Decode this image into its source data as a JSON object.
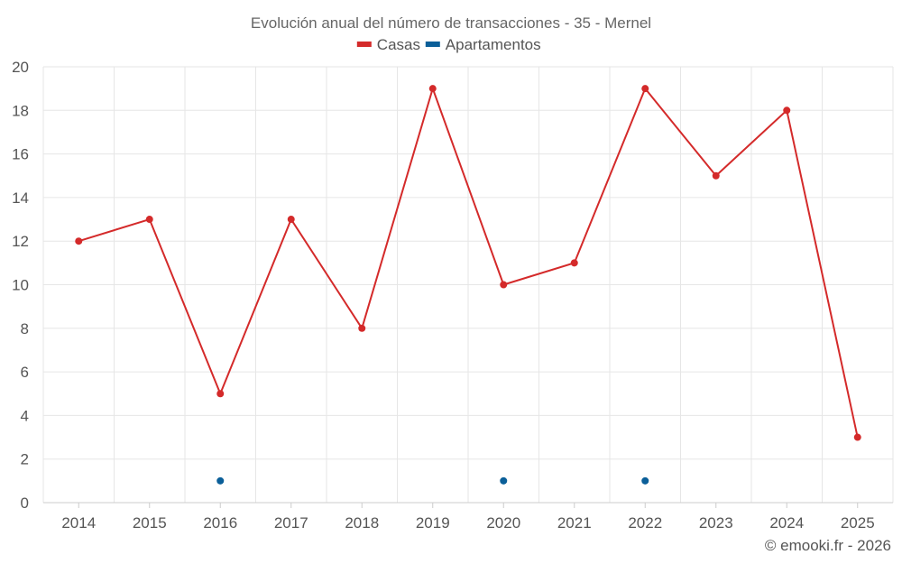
{
  "chart_data": {
    "type": "line",
    "title": "Evolución anual del número de transacciones - 35 - Mernel",
    "categories": [
      "2014",
      "2015",
      "2016",
      "2017",
      "2018",
      "2019",
      "2020",
      "2021",
      "2022",
      "2023",
      "2024",
      "2025"
    ],
    "series": [
      {
        "name": "Casas",
        "color": "#d42a2a",
        "values": [
          12,
          13,
          5,
          13,
          8,
          19,
          10,
          11,
          19,
          15,
          18,
          3
        ],
        "draw_line": true
      },
      {
        "name": "Apartamentos",
        "color": "#0b5f99",
        "values": [
          null,
          null,
          1,
          null,
          null,
          null,
          1,
          null,
          1,
          null,
          null,
          null
        ],
        "draw_line": false
      }
    ],
    "xlabel": "",
    "ylabel": "",
    "ylim": [
      0,
      20
    ],
    "yticks": [
      "0",
      "2",
      "4",
      "6",
      "8",
      "10",
      "12",
      "14",
      "16",
      "18",
      "20"
    ],
    "grid": true,
    "legend_position": "top-center"
  },
  "credit": "© emooki.fr - 2026"
}
